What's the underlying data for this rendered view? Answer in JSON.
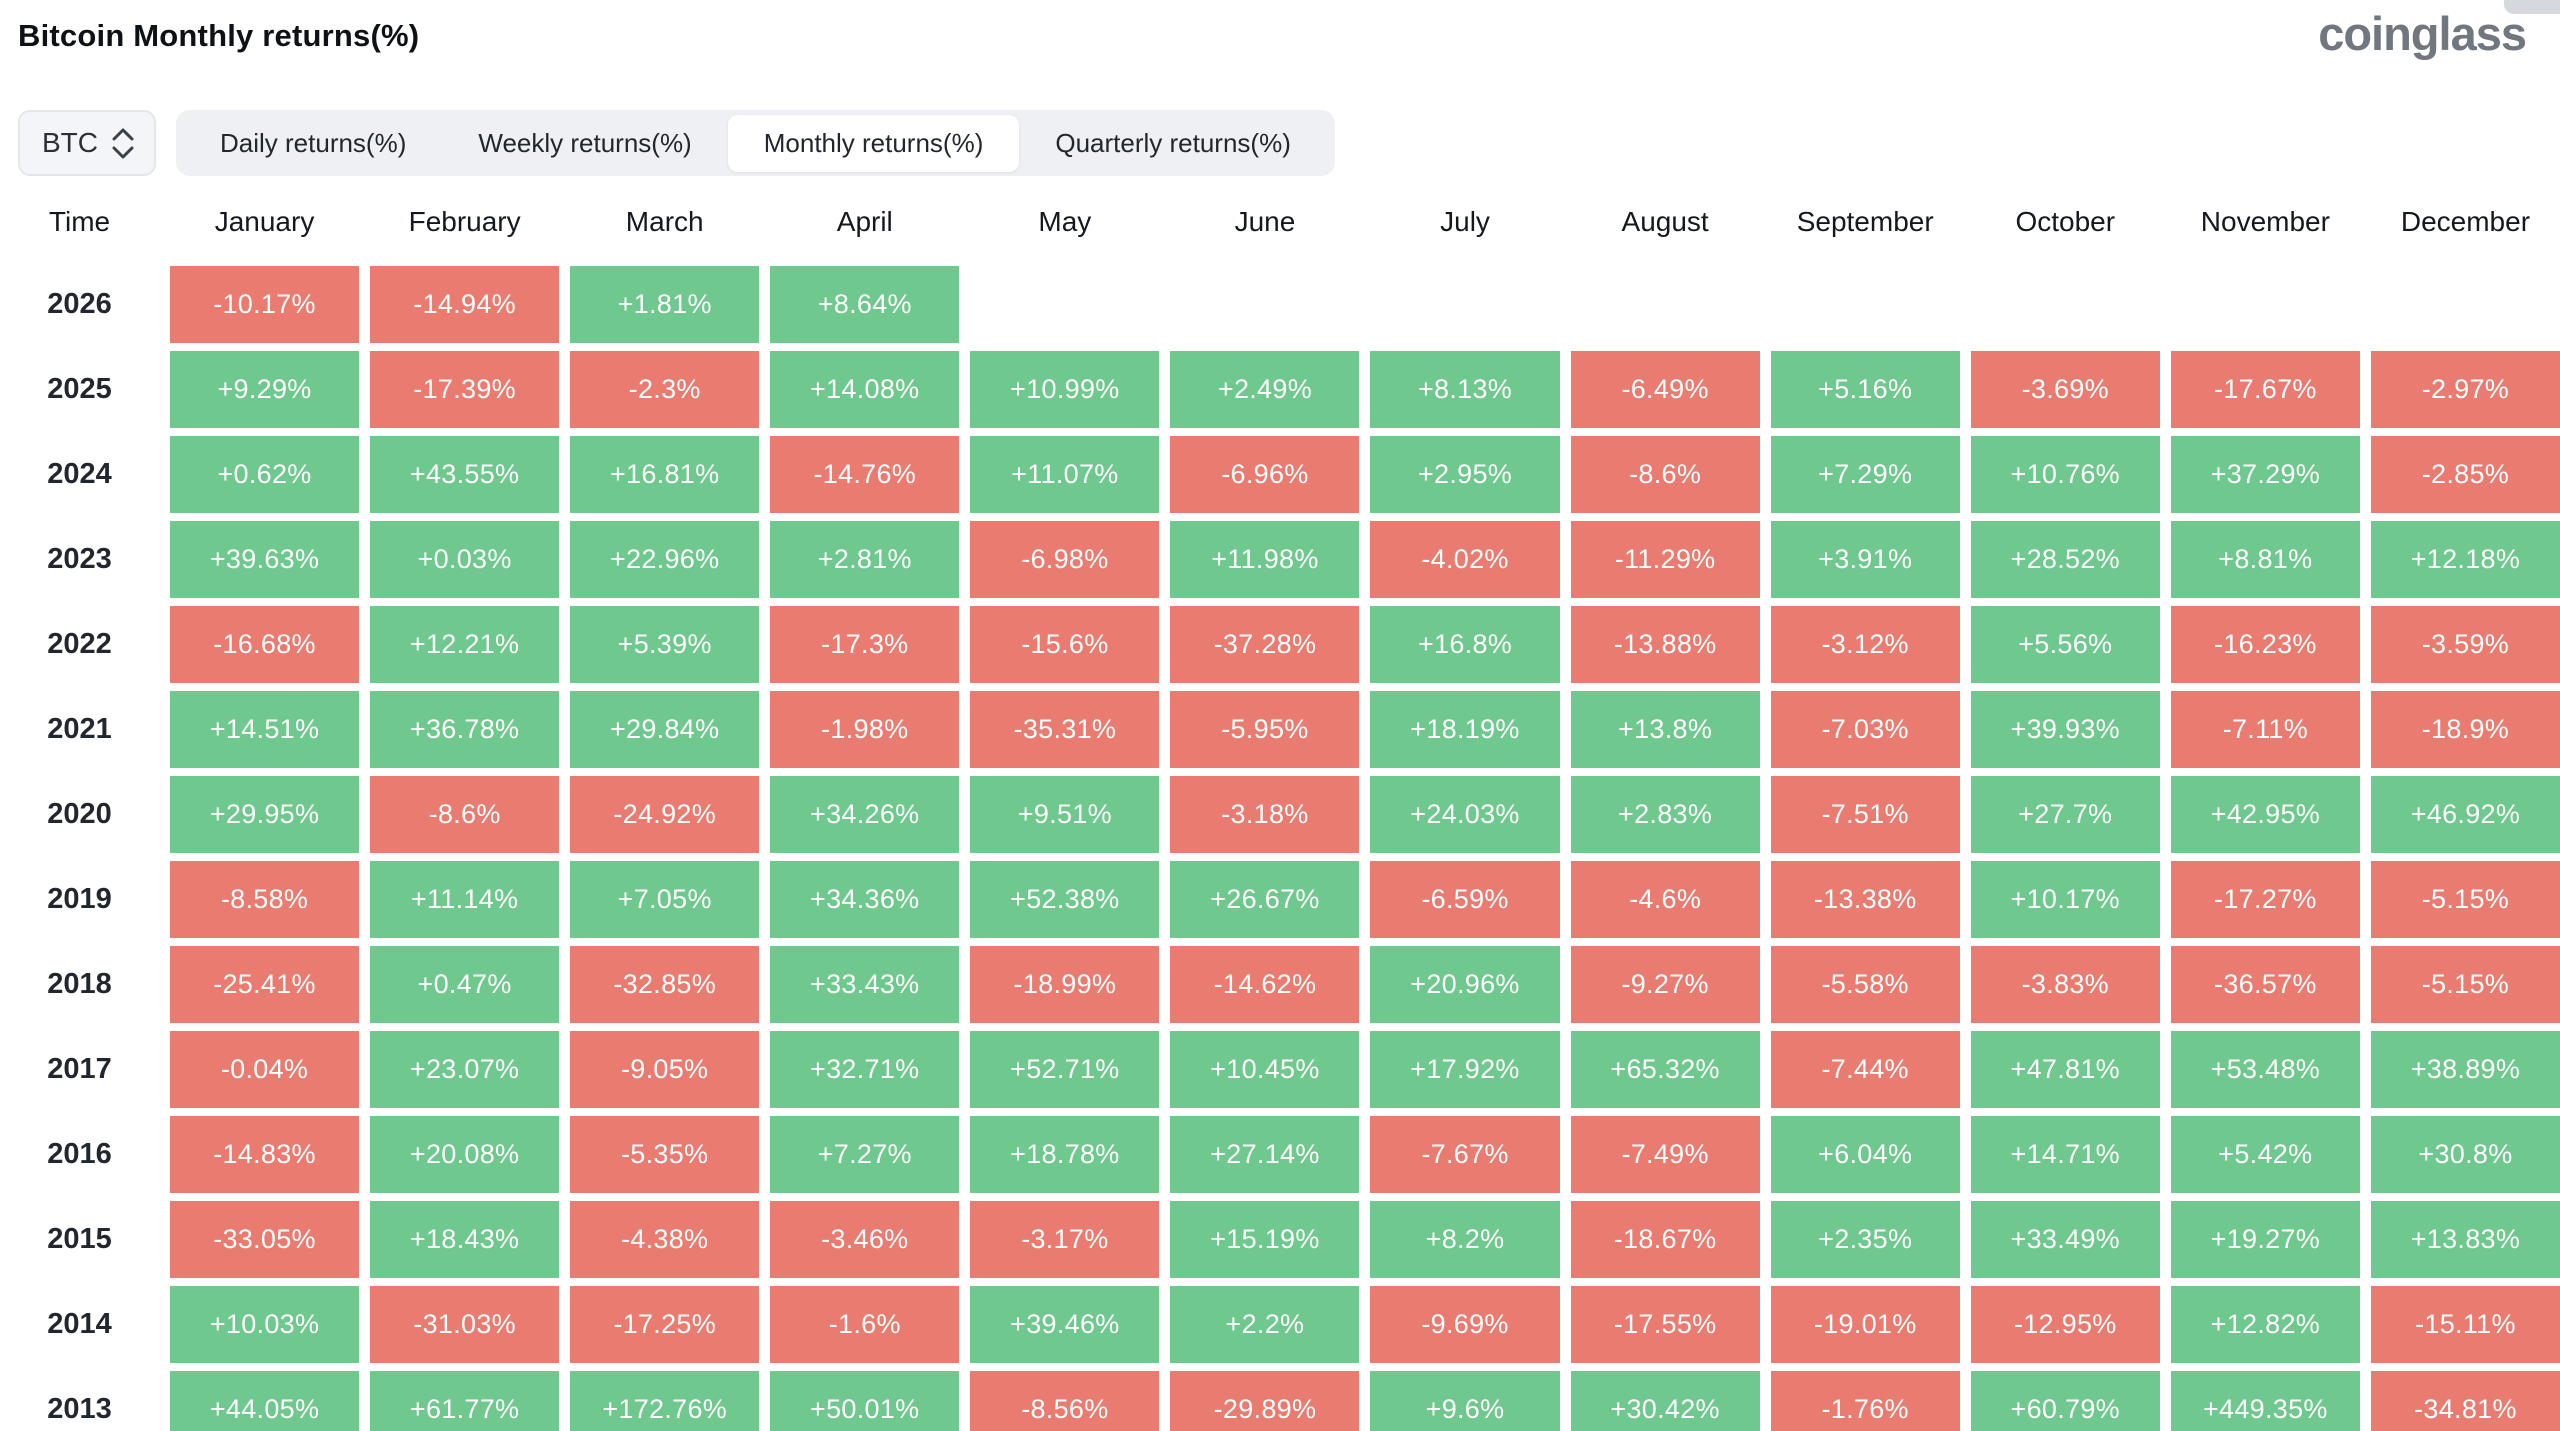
{
  "header": {
    "title": "Bitcoin Monthly returns(%)",
    "logo_text": "coinglass"
  },
  "controls": {
    "coin_selector": {
      "value": "BTC"
    },
    "tabs": [
      {
        "label": "Daily returns(%)",
        "active": false
      },
      {
        "label": "Weekly returns(%)",
        "active": false
      },
      {
        "label": "Monthly returns(%)",
        "active": true
      },
      {
        "label": "Quarterly returns(%)",
        "active": false
      }
    ]
  },
  "chart_data": {
    "type": "heatmap",
    "title": "Bitcoin Monthly returns(%)",
    "unit": "%",
    "legend_note": "green = positive monthly return, red = negative monthly return",
    "colors": {
      "positive": "#6fc88d",
      "negative": "#e97b70",
      "text": "#ffffff"
    },
    "columns": [
      "Time",
      "January",
      "February",
      "March",
      "April",
      "May",
      "June",
      "July",
      "August",
      "September",
      "October",
      "November",
      "December"
    ],
    "rows": [
      {
        "year": "2026",
        "values": [
          "-10.17%",
          "-14.94%",
          "+1.81%",
          "+8.64%",
          null,
          null,
          null,
          null,
          null,
          null,
          null,
          null
        ]
      },
      {
        "year": "2025",
        "values": [
          "+9.29%",
          "-17.39%",
          "-2.3%",
          "+14.08%",
          "+10.99%",
          "+2.49%",
          "+8.13%",
          "-6.49%",
          "+5.16%",
          "-3.69%",
          "-17.67%",
          "-2.97%"
        ]
      },
      {
        "year": "2024",
        "values": [
          "+0.62%",
          "+43.55%",
          "+16.81%",
          "-14.76%",
          "+11.07%",
          "-6.96%",
          "+2.95%",
          "-8.6%",
          "+7.29%",
          "+10.76%",
          "+37.29%",
          "-2.85%"
        ]
      },
      {
        "year": "2023",
        "values": [
          "+39.63%",
          "+0.03%",
          "+22.96%",
          "+2.81%",
          "-6.98%",
          "+11.98%",
          "-4.02%",
          "-11.29%",
          "+3.91%",
          "+28.52%",
          "+8.81%",
          "+12.18%"
        ]
      },
      {
        "year": "2022",
        "values": [
          "-16.68%",
          "+12.21%",
          "+5.39%",
          "-17.3%",
          "-15.6%",
          "-37.28%",
          "+16.8%",
          "-13.88%",
          "-3.12%",
          "+5.56%",
          "-16.23%",
          "-3.59%"
        ]
      },
      {
        "year": "2021",
        "values": [
          "+14.51%",
          "+36.78%",
          "+29.84%",
          "-1.98%",
          "-35.31%",
          "-5.95%",
          "+18.19%",
          "+13.8%",
          "-7.03%",
          "+39.93%",
          "-7.11%",
          "-18.9%"
        ]
      },
      {
        "year": "2020",
        "values": [
          "+29.95%",
          "-8.6%",
          "-24.92%",
          "+34.26%",
          "+9.51%",
          "-3.18%",
          "+24.03%",
          "+2.83%",
          "-7.51%",
          "+27.7%",
          "+42.95%",
          "+46.92%"
        ]
      },
      {
        "year": "2019",
        "values": [
          "-8.58%",
          "+11.14%",
          "+7.05%",
          "+34.36%",
          "+52.38%",
          "+26.67%",
          "-6.59%",
          "-4.6%",
          "-13.38%",
          "+10.17%",
          "-17.27%",
          "-5.15%"
        ]
      },
      {
        "year": "2018",
        "values": [
          "-25.41%",
          "+0.47%",
          "-32.85%",
          "+33.43%",
          "-18.99%",
          "-14.62%",
          "+20.96%",
          "-9.27%",
          "-5.58%",
          "-3.83%",
          "-36.57%",
          "-5.15%"
        ]
      },
      {
        "year": "2017",
        "values": [
          "-0.04%",
          "+23.07%",
          "-9.05%",
          "+32.71%",
          "+52.71%",
          "+10.45%",
          "+17.92%",
          "+65.32%",
          "-7.44%",
          "+47.81%",
          "+53.48%",
          "+38.89%"
        ]
      },
      {
        "year": "2016",
        "values": [
          "-14.83%",
          "+20.08%",
          "-5.35%",
          "+7.27%",
          "+18.78%",
          "+27.14%",
          "-7.67%",
          "-7.49%",
          "+6.04%",
          "+14.71%",
          "+5.42%",
          "+30.8%"
        ]
      },
      {
        "year": "2015",
        "values": [
          "-33.05%",
          "+18.43%",
          "-4.38%",
          "-3.46%",
          "-3.17%",
          "+15.19%",
          "+8.2%",
          "-18.67%",
          "+2.35%",
          "+33.49%",
          "+19.27%",
          "+13.83%"
        ]
      },
      {
        "year": "2014",
        "values": [
          "+10.03%",
          "-31.03%",
          "-17.25%",
          "-1.6%",
          "+39.46%",
          "+2.2%",
          "-9.69%",
          "-17.55%",
          "-19.01%",
          "-12.95%",
          "+12.82%",
          "-15.11%"
        ]
      },
      {
        "year": "2013",
        "values": [
          "+44.05%",
          "+61.77%",
          "+172.76%",
          "+50.01%",
          "-8.56%",
          "-29.89%",
          "+9.6%",
          "+30.42%",
          "-1.76%",
          "+60.79%",
          "+449.35%",
          "-34.81%"
        ]
      }
    ]
  }
}
